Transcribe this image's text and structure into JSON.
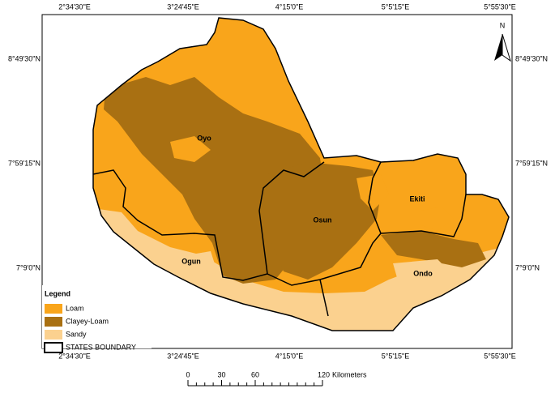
{
  "map": {
    "top_labels": [
      "2°34'30\"E",
      "3°24'45\"E",
      "4°15'0\"E",
      "5°5'15\"E",
      "5°55'30\"E"
    ],
    "bottom_labels": [
      "2°34'30\"E",
      "3°24'45\"E",
      "4°15'0\"E",
      "5°5'15\"E",
      "5°55'30\"E"
    ],
    "left_labels": [
      "8°49'30\"N",
      "7°59'15\"N",
      "7°9'0\"N"
    ],
    "right_labels": [
      "8°49'30\"N",
      "7°59'15\"N",
      "7°9'0\"N"
    ],
    "north": "N",
    "regions": [
      "Oyo",
      "Osun",
      "Ekiti",
      "Ogun",
      "Ondo"
    ],
    "legend": {
      "title": "Legend",
      "items": [
        {
          "label": "Loam",
          "color": "#f9a51b"
        },
        {
          "label": "Clayey-Loam",
          "color": "#a97012"
        },
        {
          "label": "Sandy",
          "color": "#fbd18f"
        },
        {
          "label": "STATES BOUNDARY",
          "color": "#ffffff"
        }
      ]
    },
    "scale": {
      "ticks": [
        0,
        30,
        60,
        120
      ],
      "unit": "Kilometers"
    }
  }
}
